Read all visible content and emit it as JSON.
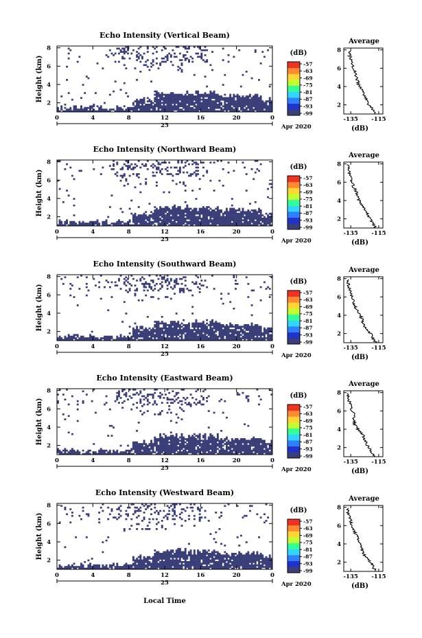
{
  "figure": {
    "xlabel": "Local Time",
    "date_label": "Apr 2020",
    "day_label": "25",
    "colorbar_unit": "(dB)",
    "colorbar_ticks": [
      "-57",
      "-63",
      "-69",
      "-75",
      "-81",
      "-87",
      "-93",
      "-99"
    ],
    "colorbar_colors": [
      "#3b3f78",
      "#2233cc",
      "#2f80ff",
      "#33d6ff",
      "#33ff99",
      "#c0ff33",
      "#ffd633",
      "#ff8a33",
      "#ee3322"
    ],
    "average_title": "Average",
    "average_xlabel": "(dB)",
    "average_xticks": [
      "-135",
      "-115"
    ],
    "height_ticks": [
      "2",
      "4",
      "6",
      "8"
    ],
    "time_ticks": [
      "0",
      "4",
      "8",
      "12",
      "16",
      "20",
      "0"
    ],
    "ylabel": "Height (km)",
    "echo_color": "#3b3f78"
  },
  "chart_data": [
    {
      "type": "heatmap",
      "title": "Echo Intensity (Vertical Beam)",
      "x_range_hours": [
        0,
        24
      ],
      "y_range_km": [
        1,
        8.2
      ],
      "average_profile": {
        "height_km": [
          1.0,
          1.5,
          2.0,
          2.5,
          3.0,
          3.5,
          4.0,
          4.5,
          5.0,
          5.5,
          6.0,
          6.5,
          7.0,
          7.5,
          8.0
        ],
        "db": [
          -117,
          -119,
          -122,
          -124,
          -125,
          -126,
          -129,
          -130,
          -131,
          -132,
          -133,
          -134,
          -135,
          -136,
          -136
        ]
      }
    },
    {
      "type": "heatmap",
      "title": "Echo Intensity (Northward Beam)",
      "x_range_hours": [
        0,
        24
      ],
      "y_range_km": [
        1,
        8.2
      ],
      "average_profile": {
        "height_km": [
          1.0,
          1.5,
          2.0,
          2.5,
          3.0,
          3.5,
          4.0,
          4.5,
          5.0,
          5.5,
          6.0,
          6.5,
          7.0,
          7.5,
          8.0
        ],
        "db": [
          -117,
          -119,
          -121,
          -123,
          -125,
          -127,
          -129,
          -130,
          -131,
          -133,
          -134,
          -135,
          -136,
          -137,
          -137
        ]
      }
    },
    {
      "type": "heatmap",
      "title": "Echo Intensity (Southward Beam)",
      "x_range_hours": [
        0,
        24
      ],
      "y_range_km": [
        1,
        8.2
      ],
      "average_profile": {
        "height_km": [
          1.0,
          1.5,
          2.0,
          2.5,
          3.0,
          3.5,
          4.0,
          4.5,
          5.0,
          5.5,
          6.0,
          6.5,
          7.0,
          7.5,
          8.0
        ],
        "db": [
          -117,
          -119,
          -121,
          -124,
          -126,
          -127,
          -128,
          -130,
          -132,
          -133,
          -134,
          -135,
          -136,
          -137,
          -137
        ]
      }
    },
    {
      "type": "heatmap",
      "title": "Echo Intensity (Eastward Beam)",
      "x_range_hours": [
        0,
        24
      ],
      "y_range_km": [
        1,
        8.2
      ],
      "average_profile": {
        "height_km": [
          1.0,
          1.5,
          2.0,
          2.5,
          3.0,
          3.5,
          4.0,
          4.5,
          5.0,
          5.5,
          6.0,
          6.5,
          7.0,
          7.5,
          8.0
        ],
        "db": [
          -118,
          -120,
          -122,
          -124,
          -125,
          -127,
          -130,
          -132,
          -133,
          -132,
          -134,
          -135,
          -136,
          -137,
          -137
        ]
      }
    },
    {
      "type": "heatmap",
      "title": "Echo Intensity (Westward Beam)",
      "x_range_hours": [
        0,
        24
      ],
      "y_range_km": [
        1,
        8.2
      ],
      "average_profile": {
        "height_km": [
          1.0,
          1.5,
          2.0,
          2.5,
          3.0,
          3.5,
          4.0,
          4.5,
          5.0,
          5.5,
          6.0,
          6.5,
          7.0,
          7.5,
          8.0
        ],
        "db": [
          -117,
          -119,
          -121,
          -124,
          -126,
          -127,
          -128,
          -130,
          -131,
          -133,
          -134,
          -135,
          -136,
          -137,
          -137
        ]
      }
    }
  ]
}
